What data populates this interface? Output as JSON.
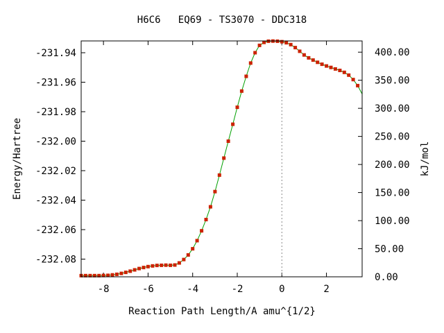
{
  "chart_data": {
    "type": "line",
    "title": "H6C6   EQ69 - TS3070 - DDC318",
    "xlabel": "Reaction Path Length/A amu^{1/2}",
    "ylabel": "Energy/Hartree",
    "y2label": "kJ/mol",
    "xlim": [
      -9.0,
      3.6
    ],
    "ylim": [
      -232.092,
      -231.932
    ],
    "y2lim": [
      0,
      420
    ],
    "x_ticks": [
      -8,
      -6,
      -4,
      -2,
      0,
      2
    ],
    "x_tick_labels": [
      "-8",
      "-6",
      "-4",
      "-2",
      "0",
      "2"
    ],
    "y_ticks": [
      -231.94,
      -231.96,
      -231.98,
      -232.0,
      -232.02,
      -232.04,
      -232.06,
      -232.08
    ],
    "y_tick_labels": [
      "-231.94",
      "-231.96",
      "-231.98",
      "-232.00",
      "-232.02",
      "-232.04",
      "-232.06",
      "-232.08"
    ],
    "y2_ticks": [
      0,
      50,
      100,
      150,
      200,
      250,
      300,
      350,
      400
    ],
    "y2_tick_labels": [
      "0.00",
      "50.00",
      "100.00",
      "150.00",
      "200.00",
      "250.00",
      "300.00",
      "350.00",
      "400.00"
    ],
    "ts_marker_x": 0,
    "line_color": "#00a000",
    "point_color": "#cc2200",
    "reference_line_color": "#888888",
    "series": [
      {
        "x": [
          -9.0,
          -8.8,
          -8.6,
          -8.4,
          -8.2,
          -8.0,
          -7.8,
          -7.6,
          -7.4,
          -7.2,
          -7.0,
          -6.8,
          -6.6,
          -6.4,
          -6.2,
          -6.0,
          -5.8,
          -5.6,
          -5.4,
          -5.2,
          -5.0,
          -4.8,
          -4.6,
          -4.4,
          -4.2,
          -4.0,
          -3.8,
          -3.6,
          -3.4,
          -3.2,
          -3.0,
          -2.8,
          -2.6,
          -2.4,
          -2.2,
          -2.0,
          -1.8,
          -1.6,
          -1.4,
          -1.2,
          -1.0,
          -0.8,
          -0.6,
          -0.4,
          -0.2,
          0.0,
          0.2,
          0.4,
          0.6,
          0.8,
          1.0,
          1.2,
          1.4,
          1.6,
          1.8,
          2.0,
          2.2,
          2.4,
          2.6,
          2.8,
          3.0,
          3.2,
          3.4,
          3.6
        ],
        "y": [
          -232.0912,
          -232.0912,
          -232.0912,
          -232.0912,
          -232.0912,
          -232.0911,
          -232.091,
          -232.0907,
          -232.0903,
          -232.0897,
          -232.089,
          -232.0882,
          -232.0873,
          -232.0864,
          -232.0857,
          -232.0851,
          -232.0846,
          -232.0843,
          -232.0842,
          -232.0841,
          -232.0842,
          -232.084,
          -232.0826,
          -232.0803,
          -232.0772,
          -232.073,
          -232.0675,
          -232.0608,
          -232.0532,
          -232.0445,
          -232.0342,
          -232.023,
          -232.0115,
          -232.0,
          -231.9885,
          -231.977,
          -231.966,
          -231.956,
          -231.947,
          -231.94,
          -231.935,
          -231.933,
          -231.9322,
          -231.9321,
          -231.9322,
          -231.9325,
          -231.9332,
          -231.9345,
          -231.9365,
          -231.939,
          -231.9415,
          -231.9435,
          -231.945,
          -231.9465,
          -231.9478,
          -231.949,
          -231.95,
          -231.951,
          -231.952,
          -231.9533,
          -231.9552,
          -231.9582,
          -231.9623,
          -231.968
        ]
      }
    ]
  }
}
